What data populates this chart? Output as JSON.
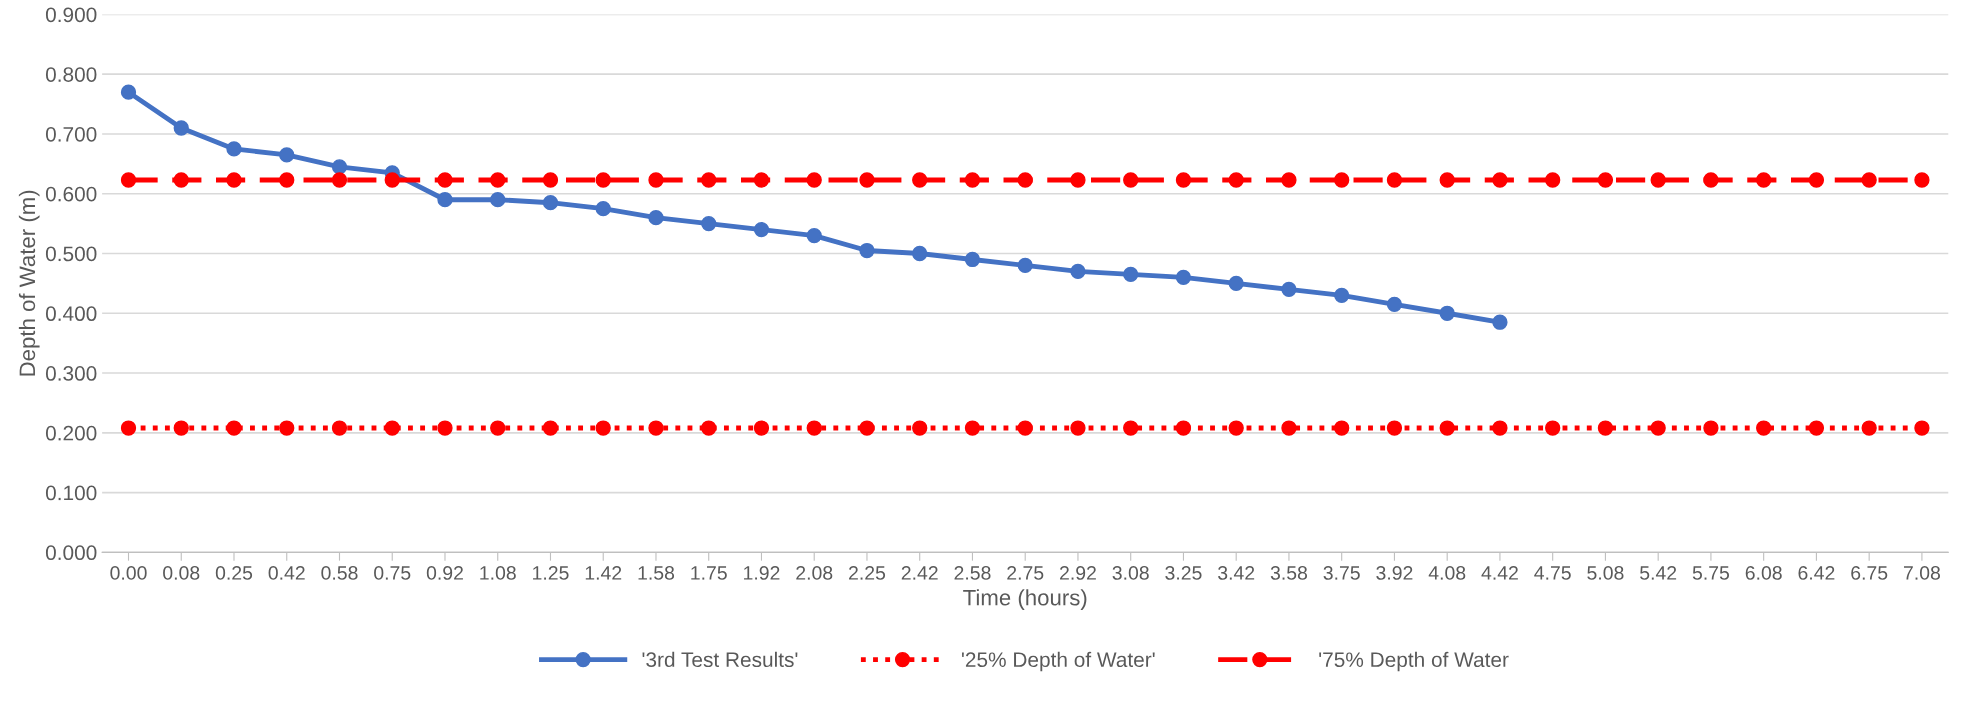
{
  "chart_data": {
    "type": "line",
    "xlabel": "Time (hours)",
    "ylabel": "Depth of Water (m)",
    "categories": [
      "0.00",
      "0.08",
      "0.25",
      "0.42",
      "0.58",
      "0.75",
      "0.92",
      "1.08",
      "1.25",
      "1.42",
      "1.58",
      "1.75",
      "1.92",
      "2.08",
      "2.25",
      "2.42",
      "2.58",
      "2.75",
      "2.92",
      "3.08",
      "3.25",
      "3.42",
      "3.58",
      "3.75",
      "3.92",
      "4.08",
      "4.42",
      "4.75",
      "5.08",
      "5.42",
      "5.75",
      "6.08",
      "6.42",
      "6.75",
      "7.08"
    ],
    "series": [
      {
        "name": "'3rd Test Results'",
        "color": "#4472c4",
        "line_style": "solid",
        "values": [
          0.77,
          0.71,
          0.675,
          0.665,
          0.645,
          0.635,
          0.59,
          0.59,
          0.585,
          0.575,
          0.56,
          0.55,
          0.54,
          0.53,
          0.505,
          0.5,
          0.49,
          0.48,
          0.47,
          0.465,
          0.46,
          0.45,
          0.44,
          0.43,
          0.415,
          0.4,
          0.385,
          null,
          null,
          null,
          null,
          null,
          null,
          null,
          null
        ]
      },
      {
        "name": "'25% Depth of Water'",
        "color": "#ff0000",
        "line_style": "dotted",
        "values": [
          0.208,
          0.208,
          0.208,
          0.208,
          0.208,
          0.208,
          0.208,
          0.208,
          0.208,
          0.208,
          0.208,
          0.208,
          0.208,
          0.208,
          0.208,
          0.208,
          0.208,
          0.208,
          0.208,
          0.208,
          0.208,
          0.208,
          0.208,
          0.208,
          0.208,
          0.208,
          0.208,
          0.208,
          0.208,
          0.208,
          0.208,
          0.208,
          0.208,
          0.208,
          0.208
        ]
      },
      {
        "name": "'75% Depth of Water",
        "color": "#ff0000",
        "line_style": "dashed",
        "values": [
          0.623,
          0.623,
          0.623,
          0.623,
          0.623,
          0.623,
          0.623,
          0.623,
          0.623,
          0.623,
          0.623,
          0.623,
          0.623,
          0.623,
          0.623,
          0.623,
          0.623,
          0.623,
          0.623,
          0.623,
          0.623,
          0.623,
          0.623,
          0.623,
          0.623,
          0.623,
          0.623,
          0.623,
          0.623,
          0.623,
          0.623,
          0.623,
          0.623,
          0.623,
          0.623
        ]
      }
    ],
    "ylim": [
      0,
      0.9
    ],
    "yticks": [
      {
        "value": 0,
        "label": "0.000"
      },
      {
        "value": 0.1,
        "label": "0.100"
      },
      {
        "value": 0.2,
        "label": "0.200"
      },
      {
        "value": 0.3,
        "label": "0.300"
      },
      {
        "value": 0.4,
        "label": "0.400"
      },
      {
        "value": 0.5,
        "label": "0.500"
      },
      {
        "value": 0.6,
        "label": "0.600"
      },
      {
        "value": 0.7,
        "label": "0.700"
      },
      {
        "value": 0.8,
        "label": "0.800"
      },
      {
        "value": 0.9,
        "label": "0.900"
      }
    ],
    "grid": "y",
    "legend": "bottom",
    "marker": "circle"
  }
}
